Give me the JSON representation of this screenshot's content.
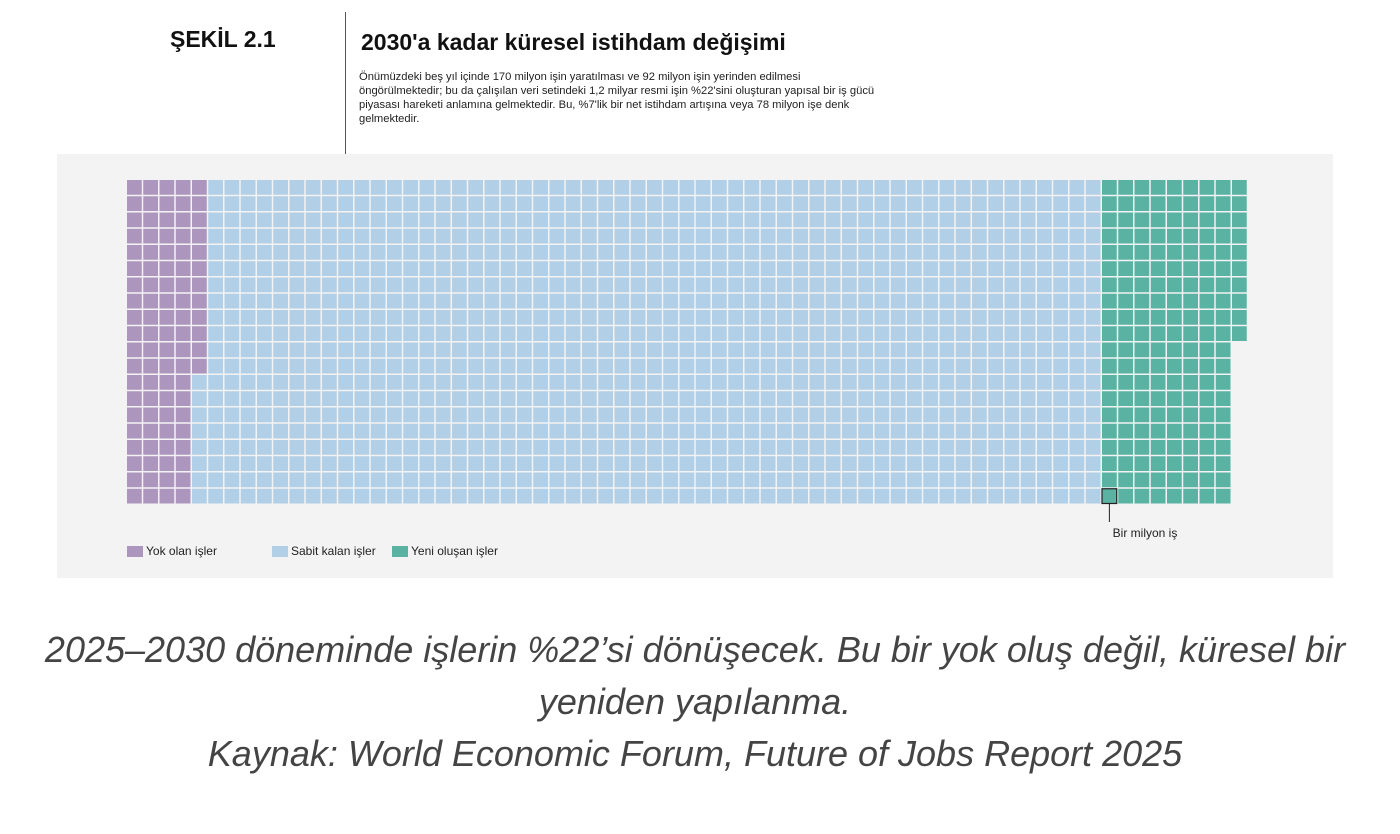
{
  "figure_label": "ŞEKİL 2.1",
  "chart_data": {
    "type": "waffle",
    "title": "2030'a kadar küresel istihdam değişimi",
    "subtitle": "Önümüzdeki beş yıl içinde 170 milyon işin yaratılması ve 92 milyon işin yerinden edilmesi öngörülmektedir; bu da çalışılan veri setindeki 1,2 milyar resmi işin %22'sini oluşturan yapısal bir iş gücü piyasası hareketi anlamına gelmektedir. Bu, %7'lik bir net istihdam artışına veya 78 milyon işe denk gelmektedir.",
    "unit": 1000000,
    "annotation": "Bir milyon iş",
    "series": [
      {
        "name": "Yok olan işler",
        "value": 92,
        "color": "#ad96bd"
      },
      {
        "name": "Sabit kalan işler",
        "value": 1108,
        "color": "#b1cfe6"
      },
      {
        "name": "Yeni oluşan işler",
        "value": 170,
        "color": "#5ab2a3"
      }
    ],
    "legend_position": "bottom-left"
  },
  "caption": {
    "line1": "2025–2030 döneminde işlerin %22’si dönüşecek. Bu bir yok oluş değil, küresel bir",
    "line2": "yeniden yapılanma.",
    "line3": "Kaynak: World Economic Forum, Future of Jobs Report 2025"
  }
}
